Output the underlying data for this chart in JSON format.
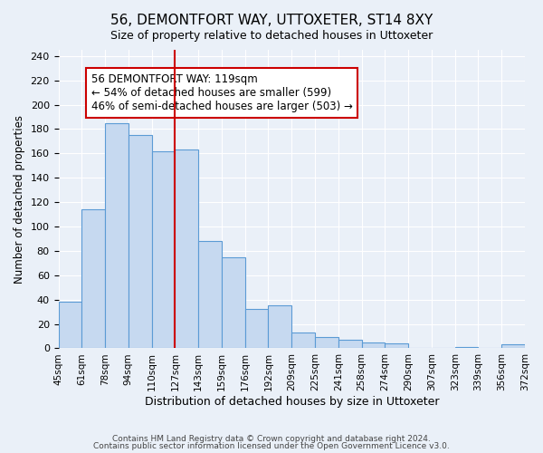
{
  "title": "56, DEMONTFORT WAY, UTTOXETER, ST14 8XY",
  "subtitle": "Size of property relative to detached houses in Uttoxeter",
  "xlabel": "Distribution of detached houses by size in Uttoxeter",
  "ylabel": "Number of detached properties",
  "bin_labels": [
    "45sqm",
    "61sqm",
    "78sqm",
    "94sqm",
    "110sqm",
    "127sqm",
    "143sqm",
    "159sqm",
    "176sqm",
    "192sqm",
    "209sqm",
    "225sqm",
    "241sqm",
    "258sqm",
    "274sqm",
    "290sqm",
    "307sqm",
    "323sqm",
    "339sqm",
    "356sqm",
    "372sqm"
  ],
  "bar_heights": [
    38,
    114,
    185,
    175,
    162,
    163,
    88,
    75,
    32,
    35,
    13,
    9,
    7,
    5,
    4,
    0,
    0,
    1,
    0,
    3
  ],
  "bar_color": "#c6d9f0",
  "bar_edge_color": "#5b9bd5",
  "vline_x": 5,
  "vline_color": "#cc0000",
  "annotation_text": "56 DEMONTFORT WAY: 119sqm\n← 54% of detached houses are smaller (599)\n46% of semi-detached houses are larger (503) →",
  "annotation_box_color": "white",
  "annotation_box_edge": "#cc0000",
  "ylim": [
    0,
    245
  ],
  "yticks": [
    0,
    20,
    40,
    60,
    80,
    100,
    120,
    140,
    160,
    180,
    200,
    220,
    240
  ],
  "footer1": "Contains HM Land Registry data © Crown copyright and database right 2024.",
  "footer2": "Contains public sector information licensed under the Open Government Licence v3.0.",
  "bg_color": "#eaf0f8",
  "plot_bg_color": "#eaf0f8"
}
